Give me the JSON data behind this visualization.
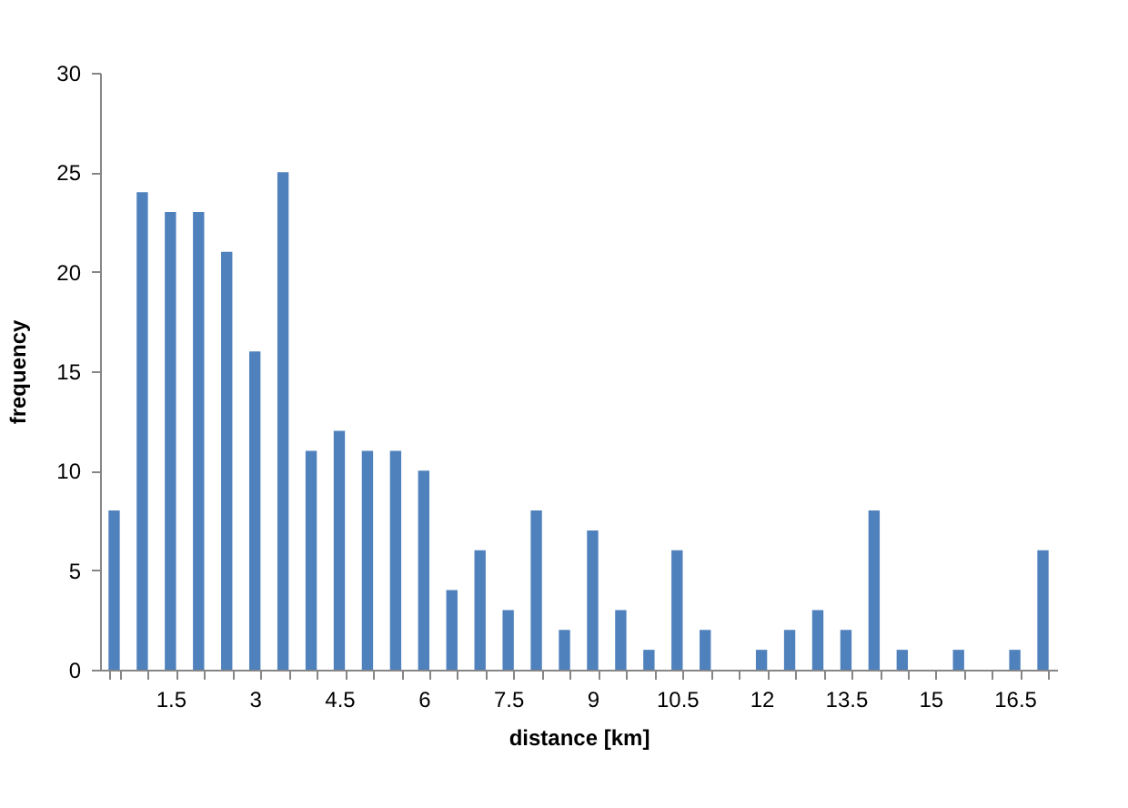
{
  "chart_data": {
    "type": "bar",
    "xlabel": "distance [km]",
    "ylabel": "frequency",
    "categories": [
      null,
      null,
      "1.5",
      null,
      null,
      "3",
      null,
      null,
      "4.5",
      null,
      null,
      "6",
      null,
      null,
      "7.5",
      null,
      null,
      "9",
      null,
      null,
      "10.5",
      null,
      null,
      "12",
      null,
      null,
      "13.5",
      null,
      null,
      "15",
      null,
      null,
      "16.5",
      null
    ],
    "values": [
      8,
      24,
      23,
      23,
      21,
      16,
      25,
      11,
      12,
      11,
      11,
      10,
      4,
      6,
      3,
      8,
      2,
      7,
      3,
      1,
      6,
      2,
      0,
      1,
      2,
      3,
      2,
      8,
      1,
      0,
      1,
      0,
      1,
      6
    ],
    "color": "#4f81bd",
    "ylim": [
      0,
      30
    ],
    "yticks": [
      0,
      5,
      10,
      15,
      20,
      25,
      30
    ]
  }
}
